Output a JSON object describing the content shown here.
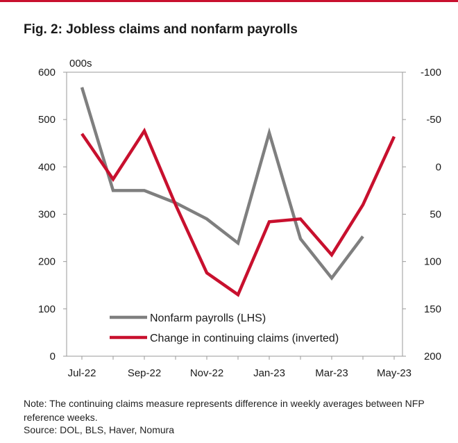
{
  "title": "Fig. 2: Jobless claims and nonfarm payrolls",
  "note": "Note: The continuing claims measure represents difference in weekly averages between NFP reference weeks.",
  "source": "Source: DOL, BLS, Haver, Nomura",
  "colors": {
    "accent": "#c8102e",
    "payrolls": "#7f7f7f",
    "claims": "#c8102e",
    "axis": "#999999"
  },
  "chart_data": {
    "type": "line",
    "unit_label": "000s",
    "x": [
      "Jul-22",
      "Aug-22",
      "Sep-22",
      "Oct-22",
      "Nov-22",
      "Dec-22",
      "Jan-23",
      "Feb-23",
      "Mar-23",
      "Apr-23",
      "May-23"
    ],
    "x_tick_labels": [
      "Jul-22",
      "Sep-22",
      "Nov-22",
      "Jan-23",
      "Mar-23",
      "May-23"
    ],
    "y_left": {
      "ticks": [
        0,
        100,
        200,
        300,
        400,
        500,
        600
      ],
      "ylim": [
        0,
        600
      ]
    },
    "y_right": {
      "ticks": [
        -100,
        -50,
        0,
        50,
        100,
        150,
        200
      ],
      "ylim": [
        -100,
        200
      ],
      "inverted": true
    },
    "series": [
      {
        "name": "Nonfarm payrolls (LHS)",
        "axis": "left",
        "values": [
          568,
          350,
          350,
          324,
          290,
          239,
          472,
          248,
          165,
          253,
          null
        ]
      },
      {
        "name": "Change in continuing claims (inverted)",
        "axis": "right",
        "values": [
          -35,
          13,
          -38,
          40,
          112,
          135,
          58,
          55,
          93,
          40,
          -32
        ]
      }
    ],
    "legend_position": "bottom-left",
    "grid": false
  }
}
